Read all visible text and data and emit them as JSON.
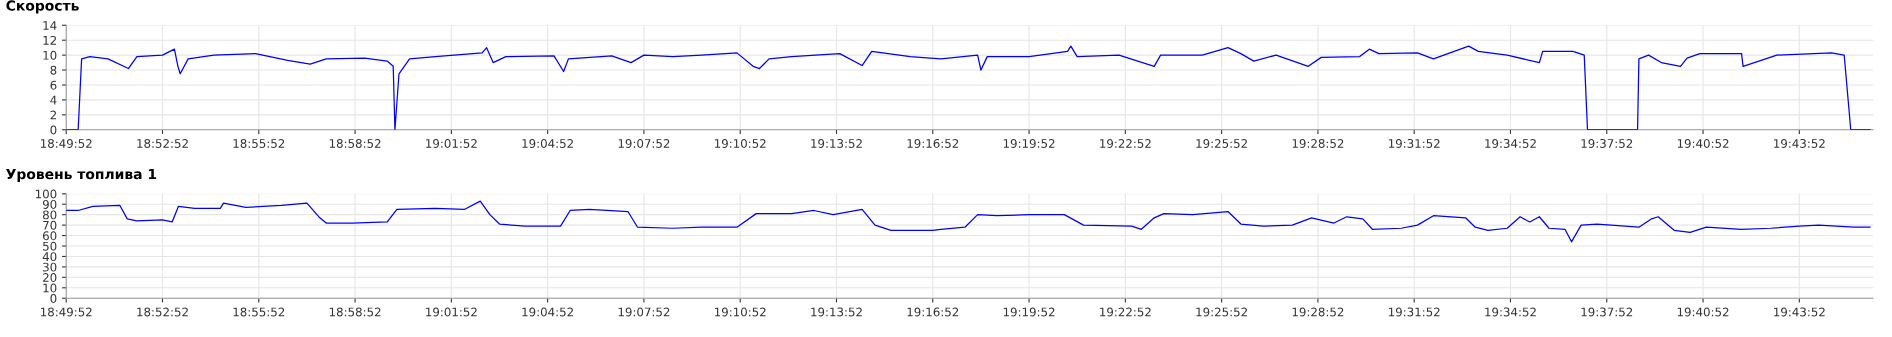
{
  "chart_data": [
    {
      "type": "line",
      "title": "Скорость",
      "xlim": [
        18.8311,
        19.7694
      ],
      "ylim": [
        0,
        14
      ],
      "yticks": [
        0,
        2,
        4,
        6,
        8,
        10,
        12,
        14
      ],
      "xticks": [
        {
          "value": 18.8311,
          "label": "18:49:52"
        },
        {
          "value": 18.8811,
          "label": "18:52:52"
        },
        {
          "value": 18.9311,
          "label": "18:55:52"
        },
        {
          "value": 18.9811,
          "label": "18:58:52"
        },
        {
          "value": 19.0311,
          "label": "19:01:52"
        },
        {
          "value": 19.0811,
          "label": "19:04:52"
        },
        {
          "value": 19.1311,
          "label": "19:07:52"
        },
        {
          "value": 19.1811,
          "label": "19:10:52"
        },
        {
          "value": 19.2311,
          "label": "19:13:52"
        },
        {
          "value": 19.2811,
          "label": "19:16:52"
        },
        {
          "value": 19.3311,
          "label": "19:19:52"
        },
        {
          "value": 19.3811,
          "label": "19:22:52"
        },
        {
          "value": 19.4311,
          "label": "19:25:52"
        },
        {
          "value": 19.4811,
          "label": "19:28:52"
        },
        {
          "value": 19.5311,
          "label": "19:31:52"
        },
        {
          "value": 19.5811,
          "label": "19:34:52"
        },
        {
          "value": 19.6311,
          "label": "19:37:52"
        },
        {
          "value": 19.6811,
          "label": "19:40:52"
        },
        {
          "value": 19.7311,
          "label": "19:43:52"
        }
      ],
      "grid": true,
      "marker": "none",
      "line_style": "solid",
      "series": [
        {
          "color": "#0000ff",
          "x": [
            18.8311,
            18.8373,
            18.8391,
            18.8434,
            18.8528,
            18.8634,
            18.8678,
            18.8811,
            18.8873,
            18.8891,
            18.8903,
            18.8944,
            18.9078,
            18.9294,
            18.9461,
            18.9578,
            18.9661,
            18.9861,
            18.9978,
            19.0009,
            19.0018,
            19.0039,
            19.0094,
            19.0228,
            19.0471,
            19.0494,
            19.0528,
            19.0594,
            19.0844,
            19.0894,
            19.0919,
            19.1144,
            19.1244,
            19.1311,
            19.1461,
            19.1611,
            19.1794,
            19.1878,
            19.1911,
            19.1961,
            19.2078,
            19.2328,
            19.2444,
            19.2494,
            19.2694,
            19.2853,
            19.3044,
            19.3061,
            19.3094,
            19.3311,
            19.3511,
            19.3528,
            19.3561,
            19.3778,
            19.3961,
            19.3994,
            19.4211,
            19.4344,
            19.4411,
            19.4478,
            19.4594,
            19.4761,
            19.4828,
            19.5028,
            19.5078,
            19.5128,
            19.5328,
            19.5411,
            19.5594,
            19.5644,
            19.5794,
            19.5961,
            19.5978,
            19.6136,
            19.6194,
            19.6211,
            19.6471,
            19.6478,
            19.6528,
            19.6594,
            19.6694,
            19.6728,
            19.6794,
            19.7011,
            19.7019,
            19.7194,
            19.7478,
            19.7544,
            19.7578,
            19.7678
          ],
          "values": [
            0,
            0,
            9.5,
            9.8,
            9.5,
            8.2,
            9.8,
            10,
            10.8,
            8.5,
            7.5,
            9.5,
            10,
            10.2,
            9.3,
            8.8,
            9.5,
            9.6,
            9.2,
            8.5,
            0,
            7.5,
            9.5,
            9.8,
            10.3,
            11,
            9,
            9.8,
            9.9,
            7.8,
            9.5,
            9.9,
            9,
            10,
            9.8,
            10,
            10.3,
            8.5,
            8.2,
            9.5,
            9.8,
            10.2,
            8.6,
            10.5,
            9.8,
            9.5,
            10,
            8,
            9.8,
            9.8,
            10.5,
            11.2,
            9.8,
            10,
            8.5,
            10,
            10,
            11,
            10.2,
            9.2,
            10,
            8.5,
            9.7,
            9.8,
            10.8,
            10.2,
            10.3,
            9.5,
            11.2,
            10.5,
            10,
            9,
            10.5,
            10.5,
            10,
            0,
            0,
            9.5,
            10,
            9,
            8.5,
            9.6,
            10.2,
            10.2,
            8.5,
            10,
            10.3,
            10,
            0,
            0
          ]
        }
      ]
    },
    {
      "type": "line",
      "title": "Уровень топлива 1",
      "xlim": [
        18.8311,
        19.7694
      ],
      "ylim": [
        0,
        100
      ],
      "yticks": [
        0,
        10,
        20,
        30,
        40,
        50,
        60,
        70,
        80,
        90,
        100
      ],
      "xticks": [
        {
          "value": 18.8311,
          "label": "18:49:52"
        },
        {
          "value": 18.8811,
          "label": "18:52:52"
        },
        {
          "value": 18.9311,
          "label": "18:55:52"
        },
        {
          "value": 18.9811,
          "label": "18:58:52"
        },
        {
          "value": 19.0311,
          "label": "19:01:52"
        },
        {
          "value": 19.0811,
          "label": "19:04:52"
        },
        {
          "value": 19.1311,
          "label": "19:07:52"
        },
        {
          "value": 19.1811,
          "label": "19:10:52"
        },
        {
          "value": 19.2311,
          "label": "19:13:52"
        },
        {
          "value": 19.2811,
          "label": "19:16:52"
        },
        {
          "value": 19.3311,
          "label": "19:19:52"
        },
        {
          "value": 19.3811,
          "label": "19:22:52"
        },
        {
          "value": 19.4311,
          "label": "19:25:52"
        },
        {
          "value": 19.4811,
          "label": "19:28:52"
        },
        {
          "value": 19.5311,
          "label": "19:31:52"
        },
        {
          "value": 19.5811,
          "label": "19:34:52"
        },
        {
          "value": 19.6311,
          "label": "19:37:52"
        },
        {
          "value": 19.6811,
          "label": "19:40:52"
        },
        {
          "value": 19.7311,
          "label": "19:43:52"
        }
      ],
      "grid": true,
      "marker": "none",
      "line_style": "solid",
      "series": [
        {
          "color": "#0000ff",
          "x": [
            18.8311,
            18.8373,
            18.8449,
            18.8589,
            18.8628,
            18.8678,
            18.8811,
            18.8861,
            18.8894,
            18.8978,
            18.9111,
            18.9128,
            18.9244,
            18.9428,
            18.9561,
            18.9628,
            18.9661,
            18.9794,
            18.9978,
            19.0028,
            19.0228,
            19.0378,
            19.0461,
            19.0511,
            19.0561,
            19.0694,
            19.0878,
            19.0928,
            19.1028,
            19.1228,
            19.1278,
            19.1461,
            19.1611,
            19.1794,
            19.1894,
            19.2078,
            19.2194,
            19.2294,
            19.2444,
            19.2511,
            19.2594,
            19.2811,
            19.2853,
            19.2978,
            19.3044,
            19.3144,
            19.3311,
            19.3494,
            19.3594,
            19.3844,
            19.3894,
            19.3961,
            19.4011,
            19.4161,
            19.4344,
            19.4411,
            19.4528,
            19.4678,
            19.4778,
            19.4894,
            19.4961,
            19.5044,
            19.5094,
            19.5244,
            19.5328,
            19.5411,
            19.5578,
            19.5628,
            19.5694,
            19.5794,
            19.5861,
            19.5911,
            19.5961,
            19.6011,
            19.6094,
            19.6128,
            19.6178,
            19.6261,
            19.6478,
            19.6544,
            19.6578,
            19.6661,
            19.6744,
            19.6828,
            19.7011,
            19.7161,
            19.7311,
            19.7411,
            19.7594,
            19.7678
          ],
          "values": [
            84,
            84,
            88,
            89,
            76,
            74,
            75,
            73,
            88,
            86,
            86,
            91,
            87,
            89,
            91,
            77,
            72,
            72,
            73,
            85,
            86,
            85,
            93,
            80,
            71,
            69,
            69,
            84,
            85,
            83,
            68,
            67,
            68,
            68,
            81,
            81,
            84,
            80,
            85,
            70,
            65,
            65,
            66,
            68,
            80,
            79,
            80,
            80,
            70,
            69,
            66,
            77,
            81,
            80,
            83,
            71,
            69,
            70,
            77,
            72,
            78,
            76,
            66,
            67,
            70,
            79,
            77,
            68,
            65,
            67,
            78,
            73,
            78,
            67,
            66,
            54,
            70,
            71,
            68,
            76,
            78,
            65,
            63,
            68,
            66,
            67,
            69,
            70,
            68,
            68
          ]
        }
      ]
    }
  ]
}
